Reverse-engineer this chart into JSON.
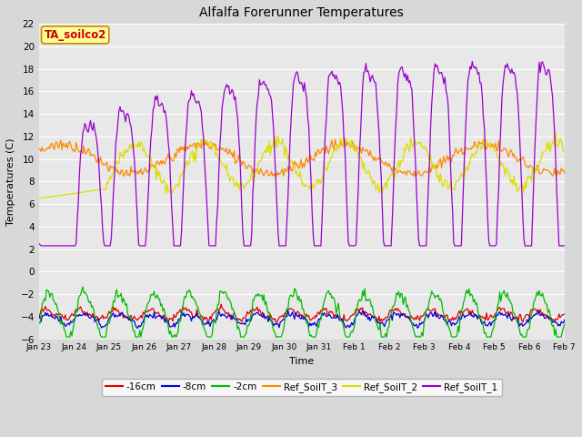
{
  "title": "Alfalfa Forerunner Temperatures",
  "ylabel": "Temperatures (C)",
  "xlabel": "Time",
  "annotation": "TA_soilco2",
  "annotation_color": "#cc0000",
  "annotation_bg": "#ffff99",
  "annotation_border": "#cc8800",
  "ylim": [
    -6,
    22
  ],
  "background_color": "#d8d8d8",
  "plot_bg": "#e8e8e8",
  "series_colors": {
    "-16cm": "#dd0000",
    "-8cm": "#0000dd",
    "-2cm": "#00bb00",
    "Ref_SoilT_3": "#ff8800",
    "Ref_SoilT_2": "#dddd00",
    "Ref_SoilT_1": "#9900cc"
  },
  "xtick_labels": [
    "Jan 23",
    "Jan 24",
    "Jan 25",
    "Jan 26",
    "Jan 27",
    "Jan 28",
    "Jan 29",
    "Jan 30",
    "Jan 31",
    "Feb 1",
    "Feb 2",
    "Feb 3",
    "Feb 4",
    "Feb 5",
    "Feb 6",
    "Feb 7"
  ],
  "n_points": 480,
  "yticks": [
    -6,
    -4,
    -2,
    0,
    2,
    4,
    6,
    8,
    10,
    12,
    14,
    16,
    18,
    20,
    22
  ]
}
